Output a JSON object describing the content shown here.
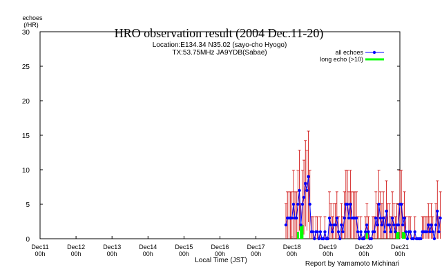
{
  "chart_data": {
    "type": "line",
    "title": "HRO observation result (2004 Dec.11-20)",
    "subtitle_lines": [
      "Location:E134.34  N35.02 (sayo-cho Hyogo)",
      "TX:53.75MHz JA9YDB(Sabae)"
    ],
    "ylabel_lines": [
      "echoes",
      "(/HR)"
    ],
    "xlabel": "Local Time (JST)",
    "credit": "Report by Yamamoto Michinari",
    "ylim": [
      0,
      30
    ],
    "yticks": [
      "0",
      "5",
      "10",
      "15",
      "20",
      "25",
      "30"
    ],
    "xlim_days": [
      11,
      21
    ],
    "xticks": [
      {
        "day": 11,
        "label": "Dec11",
        "sub": "00h"
      },
      {
        "day": 12,
        "label": "Dec12",
        "sub": "00h"
      },
      {
        "day": 13,
        "label": "Dec13",
        "sub": "00h"
      },
      {
        "day": 14,
        "label": "Dec14",
        "sub": "00h"
      },
      {
        "day": 15,
        "label": "Dec15",
        "sub": "00h"
      },
      {
        "day": 16,
        "label": "Dec16",
        "sub": "00h"
      },
      {
        "day": 17,
        "label": "Dec17",
        "sub": "00h"
      },
      {
        "day": 18,
        "label": "Dec18",
        "sub": "00h"
      },
      {
        "day": 19,
        "label": "Dec19",
        "sub": "00h"
      },
      {
        "day": 20,
        "label": "Dec20",
        "sub": "00h"
      },
      {
        "day": 21,
        "label": "Dec21",
        "sub": "00h"
      }
    ],
    "legend": {
      "position": "top-right",
      "entries": [
        {
          "label": "all echoes",
          "color": "#0000ff",
          "style": "line-marker"
        },
        {
          "label": "long echo (>10)",
          "color": "#00ff00",
          "style": "thick-line"
        }
      ]
    },
    "colors": {
      "all": "#0000ff",
      "long": "#00ff00",
      "errorbar": "#cc0000"
    },
    "series": [
      {
        "name": "all echoes",
        "start_day": 17.8333,
        "step_hours": 1,
        "values": [
          2,
          3,
          3,
          3,
          3,
          5,
          3,
          3,
          5,
          7,
          2,
          5,
          6,
          8,
          7,
          9,
          5,
          1,
          1,
          0,
          1,
          1,
          0,
          1,
          0,
          0,
          1,
          0,
          0,
          3,
          2,
          1,
          2,
          2,
          3,
          1,
          0,
          2,
          1,
          3,
          5,
          5,
          3,
          5,
          3,
          3,
          3,
          3,
          1,
          0,
          1,
          0,
          0,
          1,
          2,
          1,
          0,
          0,
          1,
          1,
          3,
          2,
          5,
          3,
          2,
          3,
          1,
          4,
          2,
          2,
          1,
          3,
          2,
          1,
          2,
          2,
          5,
          5,
          2,
          3,
          1,
          0,
          1,
          1,
          0,
          0,
          1,
          0,
          0,
          0,
          0,
          1,
          1,
          1,
          1,
          2,
          1,
          2,
          1,
          0,
          2,
          4,
          1,
          3
        ]
      },
      {
        "name": "long echo (>10)",
        "start_day": 17.8333,
        "step_hours": 1,
        "values": [
          0,
          0,
          0,
          0,
          0,
          0,
          0,
          0,
          1,
          0,
          2,
          2,
          0,
          0,
          0,
          0,
          0,
          0,
          0,
          0,
          0,
          0,
          0,
          0,
          0,
          0,
          0,
          0,
          0,
          0,
          0,
          0,
          0,
          0,
          0,
          0,
          0,
          0,
          0,
          0,
          0,
          0,
          0,
          0,
          0,
          0,
          0,
          0,
          0,
          0,
          0,
          0,
          0,
          0,
          1,
          0,
          0,
          0,
          0,
          0,
          0,
          0,
          0,
          0,
          0,
          0,
          0,
          0,
          0,
          0,
          0,
          0,
          0,
          0,
          1,
          1,
          0,
          0,
          1,
          1,
          0,
          0,
          0,
          0,
          0,
          0,
          0,
          0,
          0,
          0,
          0,
          0,
          0,
          0,
          0,
          0,
          0,
          0,
          0,
          0,
          0,
          0,
          0,
          0
        ]
      }
    ]
  }
}
